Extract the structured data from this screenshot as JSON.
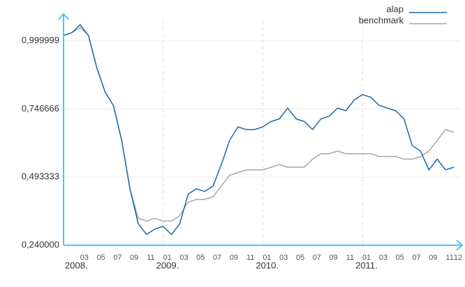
{
  "chart_data": {
    "type": "line",
    "x": [
      "2008-01",
      "2008-02",
      "2008-03",
      "2008-04",
      "2008-05",
      "2008-06",
      "2008-07",
      "2008-08",
      "2008-09",
      "2008-10",
      "2008-11",
      "2008-12",
      "2009-01",
      "2009-02",
      "2009-03",
      "2009-04",
      "2009-05",
      "2009-06",
      "2009-07",
      "2009-08",
      "2009-09",
      "2009-10",
      "2009-11",
      "2009-12",
      "2010-01",
      "2010-02",
      "2010-03",
      "2010-04",
      "2010-05",
      "2010-06",
      "2010-07",
      "2010-08",
      "2010-09",
      "2010-10",
      "2010-11",
      "2010-12",
      "2011-01",
      "2011-02",
      "2011-03",
      "2011-04",
      "2011-05",
      "2011-06",
      "2011-07",
      "2011-08",
      "2011-09",
      "2011-10",
      "2011-11",
      "2011-12"
    ],
    "series": [
      {
        "name": "alap",
        "color": "#1a6aa6",
        "values": [
          1.02,
          1.03,
          1.06,
          1.02,
          0.9,
          0.81,
          0.76,
          0.63,
          0.45,
          0.32,
          0.28,
          0.3,
          0.31,
          0.28,
          0.32,
          0.43,
          0.45,
          0.44,
          0.46,
          0.54,
          0.63,
          0.68,
          0.67,
          0.67,
          0.68,
          0.7,
          0.71,
          0.75,
          0.71,
          0.7,
          0.67,
          0.71,
          0.72,
          0.75,
          0.74,
          0.78,
          0.8,
          0.79,
          0.76,
          0.75,
          0.74,
          0.71,
          0.61,
          0.59,
          0.52,
          0.56,
          0.52,
          0.53
        ]
      },
      {
        "name": "benchmark",
        "color": "#a6a6a6",
        "values": [
          1.02,
          1.03,
          1.05,
          1.02,
          0.9,
          0.81,
          0.76,
          0.63,
          0.45,
          0.34,
          0.33,
          0.34,
          0.33,
          0.33,
          0.35,
          0.4,
          0.41,
          0.41,
          0.42,
          0.46,
          0.5,
          0.51,
          0.52,
          0.52,
          0.52,
          0.53,
          0.54,
          0.53,
          0.53,
          0.53,
          0.56,
          0.58,
          0.58,
          0.59,
          0.58,
          0.58,
          0.58,
          0.58,
          0.57,
          0.57,
          0.57,
          0.56,
          0.56,
          0.57,
          0.59,
          0.63,
          0.67,
          0.66
        ]
      }
    ],
    "xlim": [
      "2008-01",
      "2011-12"
    ],
    "ylim": [
      0.24,
      1.1
    ],
    "yticks": [
      {
        "value": 0.24,
        "label": "0,240000"
      },
      {
        "value": 0.493333,
        "label": "0,493333"
      },
      {
        "value": 0.746666,
        "label": "0,746666"
      },
      {
        "value": 0.999999,
        "label": "0,999999"
      }
    ],
    "xticks": [
      {
        "value": "2008-03",
        "label": "03"
      },
      {
        "value": "2008-05",
        "label": "05"
      },
      {
        "value": "2008-07",
        "label": "07"
      },
      {
        "value": "2008-09",
        "label": "09"
      },
      {
        "value": "2008-11",
        "label": "11"
      },
      {
        "value": "2009-01",
        "label": "01"
      },
      {
        "value": "2009-03",
        "label": "03"
      },
      {
        "value": "2009-05",
        "label": "05"
      },
      {
        "value": "2009-07",
        "label": "07"
      },
      {
        "value": "2009-09",
        "label": "09"
      },
      {
        "value": "2009-11",
        "label": "11"
      },
      {
        "value": "2010-01",
        "label": "01"
      },
      {
        "value": "2010-03",
        "label": "03"
      },
      {
        "value": "2010-05",
        "label": "05"
      },
      {
        "value": "2010-07",
        "label": "07"
      },
      {
        "value": "2010-09",
        "label": "09"
      },
      {
        "value": "2010-11",
        "label": "11"
      },
      {
        "value": "2011-01",
        "label": "01"
      },
      {
        "value": "2011-03",
        "label": "03"
      },
      {
        "value": "2011-05",
        "label": "05"
      },
      {
        "value": "2011-07",
        "label": "07"
      },
      {
        "value": "2011-09",
        "label": "09"
      },
      {
        "value": "2011-11",
        "label": "11"
      },
      {
        "value": "2011-12",
        "label": "12"
      }
    ],
    "year_ticks": [
      {
        "value": "2008-01",
        "label": "2008."
      },
      {
        "value": "2009-01",
        "label": "2009."
      },
      {
        "value": "2010-01",
        "label": "2010."
      },
      {
        "value": "2011-01",
        "label": "2011."
      }
    ],
    "grid": true,
    "legend": "top-right"
  }
}
